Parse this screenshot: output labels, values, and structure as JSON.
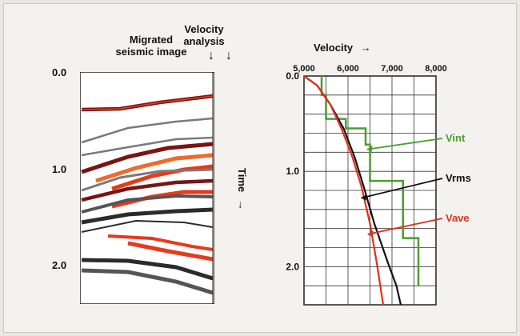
{
  "left_panel": {
    "title_line1": "Migrated",
    "title_line2": "seismic image",
    "velocity_label_line1": "Velocity",
    "velocity_label_line2": "analysis",
    "arrow_glyph": "↓",
    "time_ticks": [
      "0.0",
      "1.0",
      "2.0"
    ]
  },
  "right_panel": {
    "x_axis_label": "Velocity",
    "x_arrow": "→",
    "y_axis_label": "Time",
    "y_arrow": "→",
    "x_ticks": [
      "5,000",
      "6,000",
      "7,000",
      "8,000"
    ],
    "y_ticks": [
      "0.0",
      "1.0",
      "2.0"
    ]
  },
  "colors": {
    "vint": "#4a9e2e",
    "vrms": "#111111",
    "vave": "#e0301e",
    "reflector_red": "#e8391d",
    "reflector_orange": "#f06a2a",
    "reflector_dark": "#2b2b2b",
    "reflector_grey": "#7a7a7a",
    "reflector_maroon": "#7a1414"
  },
  "chart_data": {
    "type": "line",
    "xlabel": "Velocity",
    "ylabel": "Time",
    "xlim": [
      5000,
      8000
    ],
    "ylim": [
      0,
      2.4
    ],
    "x_ticks": [
      5000,
      6000,
      7000,
      8000
    ],
    "y_ticks": [
      0.0,
      1.0,
      2.0
    ],
    "grid": true,
    "series": [
      {
        "name": "Vint",
        "color": "#4a9e2e",
        "points": [
          [
            5400,
            0.0
          ],
          [
            5400,
            0.2
          ],
          [
            5500,
            0.2
          ],
          [
            5500,
            0.45
          ],
          [
            5950,
            0.45
          ],
          [
            5950,
            0.55
          ],
          [
            6400,
            0.55
          ],
          [
            6400,
            0.72
          ],
          [
            6500,
            0.72
          ],
          [
            6500,
            1.1
          ],
          [
            7250,
            1.1
          ],
          [
            7250,
            1.7
          ],
          [
            7600,
            1.7
          ],
          [
            7600,
            2.2
          ]
        ]
      },
      {
        "name": "Vrms",
        "color": "#111111",
        "points": [
          [
            5000,
            0.0
          ],
          [
            5300,
            0.1
          ],
          [
            5600,
            0.3
          ],
          [
            5900,
            0.55
          ],
          [
            6150,
            0.85
          ],
          [
            6350,
            1.15
          ],
          [
            6600,
            1.55
          ],
          [
            6900,
            1.95
          ],
          [
            7100,
            2.2
          ],
          [
            7200,
            2.4
          ]
        ]
      },
      {
        "name": "Vave",
        "color": "#e0301e",
        "points": [
          [
            5000,
            0.0
          ],
          [
            5300,
            0.1
          ],
          [
            5600,
            0.3
          ],
          [
            5850,
            0.55
          ],
          [
            6100,
            0.85
          ],
          [
            6300,
            1.15
          ],
          [
            6500,
            1.55
          ],
          [
            6650,
            1.95
          ],
          [
            6800,
            2.4
          ]
        ]
      }
    ]
  }
}
